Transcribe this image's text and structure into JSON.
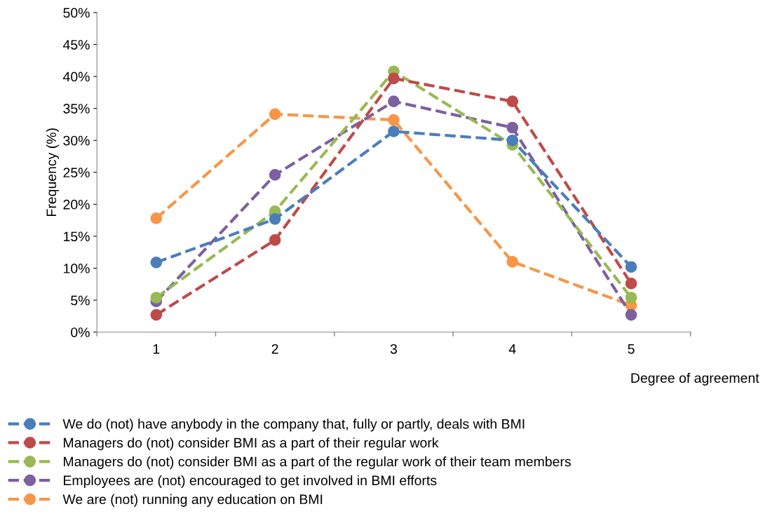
{
  "chart_data": {
    "type": "line",
    "xlabel": "Degree of agreement",
    "ylabel": "Frequency (%)",
    "categories": [
      "1",
      "2",
      "3",
      "4",
      "5"
    ],
    "ylim": [
      0,
      50
    ],
    "yticks": [
      {
        "value": 0,
        "label": "0%"
      },
      {
        "value": 5,
        "label": "5%"
      },
      {
        "value": 10,
        "label": "10%"
      },
      {
        "value": 15,
        "label": "15%"
      },
      {
        "value": 20,
        "label": "20%"
      },
      {
        "value": 25,
        "label": "25%"
      },
      {
        "value": 30,
        "label": "30%"
      },
      {
        "value": 35,
        "label": "35%"
      },
      {
        "value": 40,
        "label": "40%"
      },
      {
        "value": 45,
        "label": "45%"
      },
      {
        "value": 50,
        "label": "50%"
      }
    ],
    "series": [
      {
        "name": "We do (not) have anybody in the company that, fully or partly, deals with BMI",
        "color": "#4a7ebb",
        "values": [
          10.9,
          17.7,
          31.4,
          30.0,
          10.2
        ]
      },
      {
        "name": "Managers do (not) consider BMI as a part of their regular work",
        "color": "#be4b48",
        "values": [
          2.7,
          14.4,
          39.7,
          36.1,
          7.6
        ]
      },
      {
        "name": "Managers do (not) consider BMI as a part of the regular work of their team members",
        "color": "#98b954",
        "values": [
          5.4,
          18.9,
          40.8,
          29.3,
          5.4
        ]
      },
      {
        "name": "Employees are (not) encouraged to get involved in BMI efforts",
        "color": "#7d60a0",
        "values": [
          4.8,
          24.6,
          36.1,
          32.0,
          2.7
        ]
      },
      {
        "name": "We are (not) running any education on BMI",
        "color": "#f79646",
        "values": [
          17.8,
          34.1,
          33.2,
          11.0,
          4.2
        ]
      }
    ],
    "marker": "circle",
    "line_style": "dashed",
    "grid": false,
    "legend": "bottom"
  }
}
